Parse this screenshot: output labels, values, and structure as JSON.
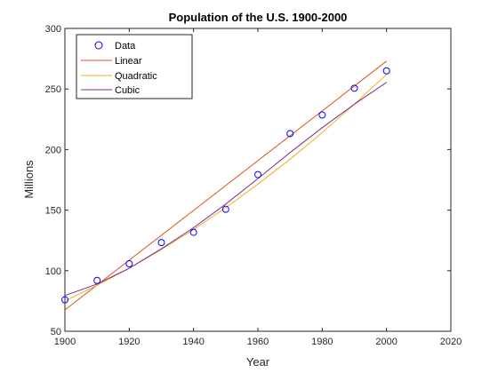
{
  "chart_data": {
    "type": "line",
    "title": "Population of the U.S. 1900-2000",
    "xlabel": "Year",
    "ylabel": "Millions",
    "xlim": [
      1900,
      2020
    ],
    "ylim": [
      50,
      300
    ],
    "xticks": [
      1900,
      1920,
      1940,
      1960,
      1980,
      2000,
      2020
    ],
    "yticks": [
      50,
      100,
      150,
      200,
      250,
      300
    ],
    "grid": false,
    "legend_position": "top-left",
    "data": {
      "name": "Data",
      "x": [
        1900,
        1910,
        1920,
        1930,
        1940,
        1950,
        1960,
        1970,
        1980,
        1990,
        2000
      ],
      "y": [
        75.995,
        91.972,
        105.711,
        123.203,
        131.669,
        150.697,
        179.323,
        213.212,
        228.505,
        250.633,
        265.0
      ],
      "color": "#0000ff",
      "marker": "circle"
    },
    "series": [
      {
        "name": "Linear",
        "color": "#d95319",
        "x": [
          1900,
          2000
        ],
        "y": [
          67.6,
          273.0
        ]
      },
      {
        "name": "Quadratic",
        "color": "#edb120",
        "x": [
          1900,
          1910,
          1920,
          1930,
          1940,
          1950,
          1960,
          1970,
          1980,
          1990,
          2000
        ],
        "y": [
          75.0,
          88.0,
          102.0,
          117.5,
          134.0,
          152.0,
          171.5,
          192.0,
          214.0,
          237.5,
          262.0
        ]
      },
      {
        "name": "Cubic",
        "color": "#7e2f8e",
        "x": [
          1900,
          1910,
          1920,
          1930,
          1940,
          1950,
          1960,
          1970,
          1980,
          1990,
          2000
        ],
        "y": [
          79.5,
          89.0,
          102.0,
          118.0,
          135.5,
          155.0,
          176.0,
          197.5,
          218.0,
          237.5,
          255.5
        ]
      }
    ]
  }
}
